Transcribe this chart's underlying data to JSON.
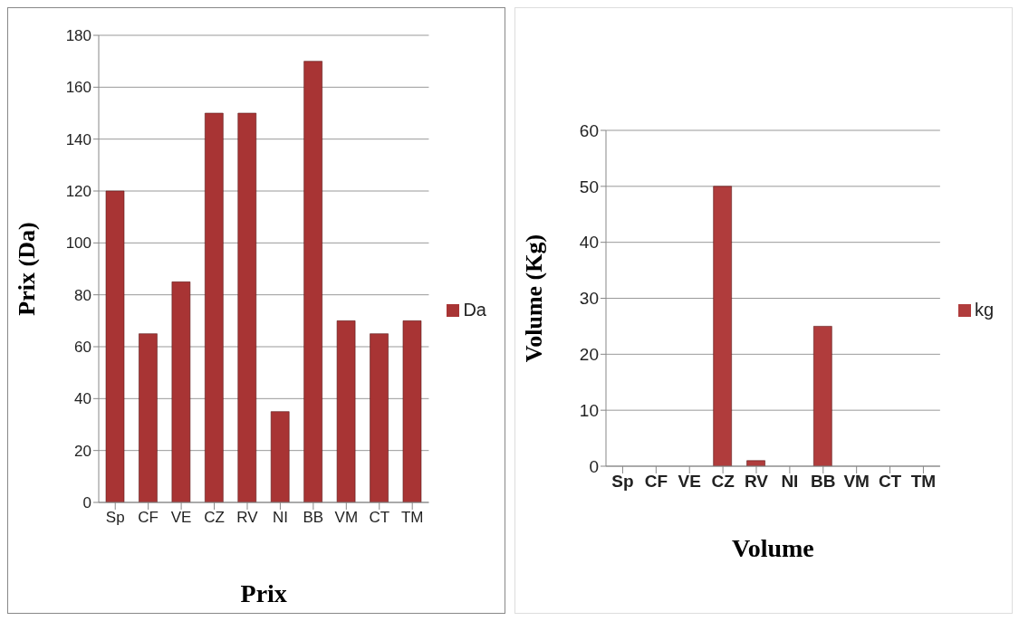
{
  "chart_data": [
    {
      "type": "bar",
      "categories": [
        "Sp",
        "CF",
        "VE",
        "CZ",
        "RV",
        "NI",
        "BB",
        "VM",
        "CT",
        "TM"
      ],
      "series": [
        {
          "name": "Da",
          "color": "#a83434",
          "values": [
            120,
            65,
            85,
            150,
            150,
            35,
            170,
            70,
            65,
            70
          ]
        }
      ],
      "xlabel": "Prix",
      "ylabel": "Prix (Da)",
      "ylim": [
        0,
        180
      ],
      "yticks": [
        0,
        20,
        40,
        60,
        80,
        100,
        120,
        140,
        160,
        180
      ],
      "grid": "y",
      "legend": "right"
    },
    {
      "type": "bar",
      "categories": [
        "Sp",
        "CF",
        "VE",
        "CZ",
        "RV",
        "NI",
        "BB",
        "VM",
        "CT",
        "TM"
      ],
      "series": [
        {
          "name": "kg",
          "color": "#b03c3c",
          "values": [
            0,
            0,
            0,
            50,
            1,
            0,
            25,
            0,
            0,
            0
          ]
        }
      ],
      "xlabel": "Volume",
      "ylabel": "Volume  (Kg)",
      "ylim": [
        0,
        60
      ],
      "yticks": [
        0,
        10,
        20,
        30,
        40,
        50,
        60
      ],
      "grid": "y",
      "legend": "right"
    }
  ]
}
